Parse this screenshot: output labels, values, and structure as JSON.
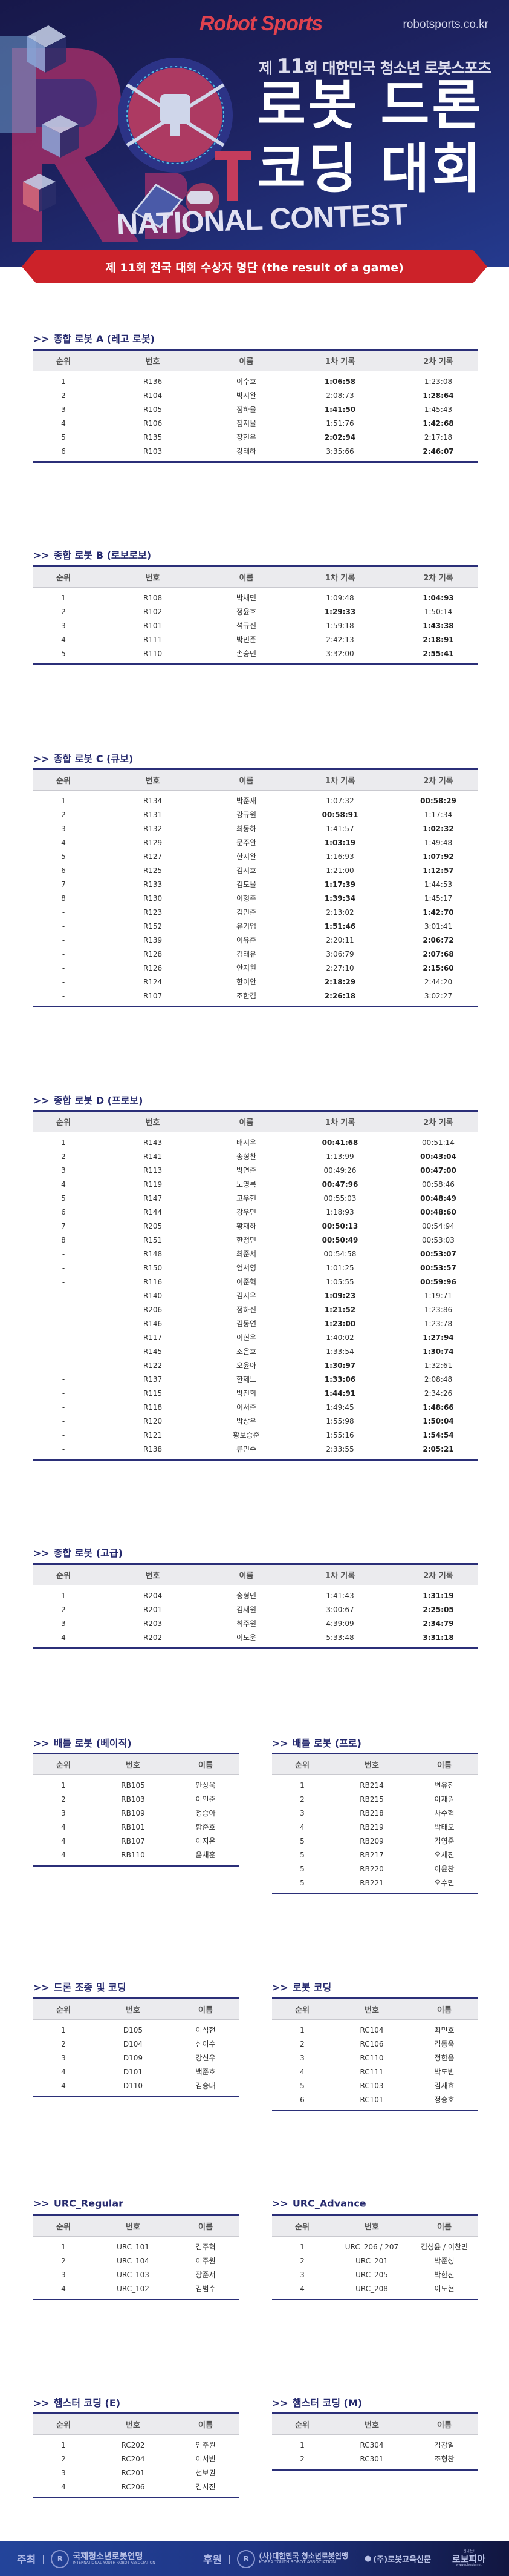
{
  "banner": {
    "logo": "Robot Sports",
    "url": "robotsports.co.kr",
    "subtitle_prefix": "제",
    "subtitle_number": "11",
    "subtitle_rest": "회 대한민국 청소년 로봇스포츠",
    "title_line1": "로봇 드론",
    "title_line2": "코딩 대회",
    "national": "NATIONAL CONTEST",
    "ribbon": "제 11회 전국 대회 수상자 명단 (the result of a game)"
  },
  "colors": {
    "navy": "#262a6e",
    "red": "#cc2229",
    "header_bg": "#ebebee"
  },
  "title_prefix": ">>",
  "headers_full": [
    "순위",
    "번호",
    "이름",
    "1차 기록",
    "2차 기록"
  ],
  "headers_small": [
    "순위",
    "번호",
    "이름"
  ],
  "sections": [
    {
      "title": "종합 로봇 A (레고 로봇)",
      "rows": [
        {
          "cells": [
            "1",
            "R136",
            "이수호",
            "1:06:58",
            "1:23:08"
          ],
          "best": 1
        },
        {
          "cells": [
            "2",
            "R104",
            "박시완",
            "2:08:73",
            "1:28:64"
          ],
          "best": 2
        },
        {
          "cells": [
            "3",
            "R105",
            "정하율",
            "1:41:50",
            "1:45:43"
          ],
          "best": 1
        },
        {
          "cells": [
            "4",
            "R106",
            "정지율",
            "1:51:76",
            "1:42:68"
          ],
          "best": 2
        },
        {
          "cells": [
            "5",
            "R135",
            "장현우",
            "2:02:94",
            "2:17:18"
          ],
          "best": 1
        },
        {
          "cells": [
            "6",
            "R103",
            "강태하",
            "3:35:66",
            "2:46:07"
          ],
          "best": 2
        }
      ]
    },
    {
      "title": "종합 로봇 B (로보로보)",
      "rows": [
        {
          "cells": [
            "1",
            "R108",
            "박채민",
            "1:09:48",
            "1:04:93"
          ],
          "best": 2
        },
        {
          "cells": [
            "2",
            "R102",
            "정윤호",
            "1:29:33",
            "1:50:14"
          ],
          "best": 1
        },
        {
          "cells": [
            "3",
            "R101",
            "석규진",
            "1:59:18",
            "1:43:38"
          ],
          "best": 2
        },
        {
          "cells": [
            "4",
            "R111",
            "박민준",
            "2:42:13",
            "2:18:91"
          ],
          "best": 2
        },
        {
          "cells": [
            "5",
            "R110",
            "손승민",
            "3:32:00",
            "2:55:41"
          ],
          "best": 2
        }
      ]
    },
    {
      "title": "종합 로봇 C (큐보)",
      "rows": [
        {
          "cells": [
            "1",
            "R134",
            "박준재",
            "1:07:32",
            "00:58:29"
          ],
          "best": 2
        },
        {
          "cells": [
            "2",
            "R131",
            "강규원",
            "00:58:91",
            "1:17:34"
          ],
          "best": 1
        },
        {
          "cells": [
            "3",
            "R132",
            "최동하",
            "1:41:57",
            "1:02:32"
          ],
          "best": 2
        },
        {
          "cells": [
            "4",
            "R129",
            "문주완",
            "1:03:19",
            "1:49:48"
          ],
          "best": 1
        },
        {
          "cells": [
            "5",
            "R127",
            "한지완",
            "1:16:93",
            "1:07:92"
          ],
          "best": 2
        },
        {
          "cells": [
            "6",
            "R125",
            "김시호",
            "1:21:00",
            "1:12:57"
          ],
          "best": 2
        },
        {
          "cells": [
            "7",
            "R133",
            "김도율",
            "1:17:39",
            "1:44:53"
          ],
          "best": 1
        },
        {
          "cells": [
            "8",
            "R130",
            "이형주",
            "1:39:34",
            "1:45:17"
          ],
          "best": 1
        },
        {
          "cells": [
            "-",
            "R123",
            "김민준",
            "2:13:02",
            "1:42:70"
          ],
          "best": 2
        },
        {
          "cells": [
            "-",
            "R152",
            "유기업",
            "1:51:46",
            "3:01:41"
          ],
          "best": 1
        },
        {
          "cells": [
            "-",
            "R139",
            "이유준",
            "2:20:11",
            "2:06:72"
          ],
          "best": 2
        },
        {
          "cells": [
            "-",
            "R128",
            "김태유",
            "3:06:79",
            "2:07:68"
          ],
          "best": 2
        },
        {
          "cells": [
            "-",
            "R126",
            "안지원",
            "2:27:10",
            "2:15:60"
          ],
          "best": 2
        },
        {
          "cells": [
            "-",
            "R124",
            "한이안",
            "2:18:29",
            "2:44:20"
          ],
          "best": 1
        },
        {
          "cells": [
            "-",
            "R107",
            "조한겸",
            "2:26:18",
            "3:02:27"
          ],
          "best": 1
        }
      ]
    },
    {
      "title": "종합 로봇 D (프로보)",
      "rows": [
        {
          "cells": [
            "1",
            "R143",
            "배시우",
            "00:41:68",
            "00:51:14"
          ],
          "best": 1
        },
        {
          "cells": [
            "2",
            "R141",
            "송형찬",
            "1:13:99",
            "00:43:04"
          ],
          "best": 2
        },
        {
          "cells": [
            "3",
            "R113",
            "박연준",
            "00:49:26",
            "00:47:00"
          ],
          "best": 2
        },
        {
          "cells": [
            "4",
            "R119",
            "노영록",
            "00:47:96",
            "00:58:46"
          ],
          "best": 1
        },
        {
          "cells": [
            "5",
            "R147",
            "고우현",
            "00:55:03",
            "00:48:49"
          ],
          "best": 2
        },
        {
          "cells": [
            "6",
            "R144",
            "강우민",
            "1:18:93",
            "00:48:60"
          ],
          "best": 2
        },
        {
          "cells": [
            "7",
            "R205",
            "황재하",
            "00:50:13",
            "00:54:94"
          ],
          "best": 1
        },
        {
          "cells": [
            "8",
            "R151",
            "한정민",
            "00:50:49",
            "00:53:03"
          ],
          "best": 1
        },
        {
          "cells": [
            "-",
            "R148",
            "최준서",
            "00:54:58",
            "00:53:07"
          ],
          "best": 2
        },
        {
          "cells": [
            "-",
            "R150",
            "엄서영",
            "1:01:25",
            "00:53:57"
          ],
          "best": 2
        },
        {
          "cells": [
            "-",
            "R116",
            "이준혁",
            "1:05:55",
            "00:59:96"
          ],
          "best": 2
        },
        {
          "cells": [
            "-",
            "R140",
            "김지우",
            "1:09:23",
            "1:19:71"
          ],
          "best": 1
        },
        {
          "cells": [
            "-",
            "R206",
            "정하진",
            "1:21:52",
            "1:23:86"
          ],
          "best": 1
        },
        {
          "cells": [
            "-",
            "R146",
            "김동연",
            "1:23:00",
            "1:23:78"
          ],
          "best": 1
        },
        {
          "cells": [
            "-",
            "R117",
            "이현우",
            "1:40:02",
            "1:27:94"
          ],
          "best": 2
        },
        {
          "cells": [
            "-",
            "R145",
            "조은호",
            "1:33:54",
            "1:30:74"
          ],
          "best": 2
        },
        {
          "cells": [
            "-",
            "R122",
            "오윤아",
            "1:30:97",
            "1:32:61"
          ],
          "best": 1
        },
        {
          "cells": [
            "-",
            "R137",
            "한제노",
            "1:33:06",
            "2:08:48"
          ],
          "best": 1
        },
        {
          "cells": [
            "-",
            "R115",
            "박진희",
            "1:44:91",
            "2:34:26"
          ],
          "best": 1
        },
        {
          "cells": [
            "-",
            "R118",
            "이서준",
            "1:49:45",
            "1:48:66"
          ],
          "best": 2
        },
        {
          "cells": [
            "-",
            "R120",
            "박상우",
            "1:55:98",
            "1:50:04"
          ],
          "best": 2
        },
        {
          "cells": [
            "-",
            "R121",
            "황보승준",
            "1:55:16",
            "1:54:54"
          ],
          "best": 2
        },
        {
          "cells": [
            "-",
            "R138",
            "류민수",
            "2:33:55",
            "2:05:21"
          ],
          "best": 2
        }
      ]
    },
    {
      "title": "종합 로봇 (고급)",
      "rows": [
        {
          "cells": [
            "1",
            "R204",
            "송형민",
            "1:41:43",
            "1:31:19"
          ],
          "best": 2
        },
        {
          "cells": [
            "2",
            "R201",
            "김재원",
            "3:00:67",
            "2:25:05"
          ],
          "best": 2
        },
        {
          "cells": [
            "3",
            "R203",
            "최주원",
            "4:39:09",
            "2:34:79"
          ],
          "best": 2
        },
        {
          "cells": [
            "4",
            "R202",
            "이도윤",
            "5:33:48",
            "3:31:18"
          ],
          "best": 2
        }
      ]
    },
    {
      "title": "배틀 로봇 (베이직)",
      "rows": [
        {
          "cells": [
            "1",
            "RB105",
            "안상욱"
          ]
        },
        {
          "cells": [
            "2",
            "RB103",
            "이인준"
          ]
        },
        {
          "cells": [
            "3",
            "RB109",
            "정승아"
          ]
        },
        {
          "cells": [
            "4",
            "RB101",
            "함준호"
          ]
        },
        {
          "cells": [
            "4",
            "RB107",
            "이지온"
          ]
        },
        {
          "cells": [
            "4",
            "RB110",
            "윤채훈"
          ]
        }
      ]
    },
    {
      "title": "배틀 로봇 (프로)",
      "rows": [
        {
          "cells": [
            "1",
            "RB214",
            "변유진"
          ]
        },
        {
          "cells": [
            "2",
            "RB215",
            "이재원"
          ]
        },
        {
          "cells": [
            "3",
            "RB218",
            "차수혁"
          ]
        },
        {
          "cells": [
            "4",
            "RB219",
            "박태오"
          ]
        },
        {
          "cells": [
            "5",
            "RB209",
            "김영준"
          ]
        },
        {
          "cells": [
            "5",
            "RB217",
            "오세진"
          ]
        },
        {
          "cells": [
            "5",
            "RB220",
            "이윤찬"
          ]
        },
        {
          "cells": [
            "5",
            "RB221",
            "오수민"
          ]
        }
      ]
    },
    {
      "title": "드론 조종 및 코딩",
      "rows": [
        {
          "cells": [
            "1",
            "D105",
            "이석현"
          ]
        },
        {
          "cells": [
            "2",
            "D104",
            "심이수"
          ]
        },
        {
          "cells": [
            "3",
            "D109",
            "강신우"
          ]
        },
        {
          "cells": [
            "4",
            "D101",
            "백준호"
          ]
        },
        {
          "cells": [
            "4",
            "D110",
            "김승태"
          ]
        }
      ]
    },
    {
      "title": "로봇 코딩",
      "rows": [
        {
          "cells": [
            "1",
            "RC104",
            "최민호"
          ]
        },
        {
          "cells": [
            "2",
            "RC106",
            "김동욱"
          ]
        },
        {
          "cells": [
            "3",
            "RC110",
            "정한음"
          ]
        },
        {
          "cells": [
            "4",
            "RC111",
            "박도빈"
          ]
        },
        {
          "cells": [
            "5",
            "RC103",
            "김재효"
          ]
        },
        {
          "cells": [
            "6",
            "RC101",
            "정승호"
          ]
        }
      ]
    },
    {
      "title": "URC_Regular",
      "rows": [
        {
          "cells": [
            "1",
            "URC_101",
            "김주혁"
          ]
        },
        {
          "cells": [
            "2",
            "URC_104",
            "이주원"
          ]
        },
        {
          "cells": [
            "3",
            "URC_103",
            "장준서"
          ]
        },
        {
          "cells": [
            "4",
            "URC_102",
            "김범수"
          ]
        }
      ]
    },
    {
      "title": "URC_Advance",
      "rows": [
        {
          "cells": [
            "1",
            "URC_206 / 207",
            "김성윤 / 이찬민"
          ]
        },
        {
          "cells": [
            "2",
            "URC_201",
            "박준성"
          ]
        },
        {
          "cells": [
            "3",
            "URC_205",
            "박한진"
          ]
        },
        {
          "cells": [
            "4",
            "URC_208",
            "이도현"
          ]
        }
      ]
    },
    {
      "title": "햄스터 코딩 (E)",
      "rows": [
        {
          "cells": [
            "1",
            "RC202",
            "임주원"
          ]
        },
        {
          "cells": [
            "2",
            "RC204",
            "이서빈"
          ]
        },
        {
          "cells": [
            "3",
            "RC201",
            "선보권"
          ]
        },
        {
          "cells": [
            "4",
            "RC206",
            "김시진"
          ]
        }
      ]
    },
    {
      "title": "햄스터 코딩 (M)",
      "rows": [
        {
          "cells": [
            "1",
            "RC304",
            "김강일"
          ]
        },
        {
          "cells": [
            "2",
            "RC301",
            "조형찬"
          ]
        }
      ]
    }
  ],
  "footer": {
    "host_label": "주최",
    "host_org": "국제청소년로봇연맹",
    "host_org_en": "INTERNATIONAL YOUTH ROBOT ASSOCIATION",
    "sponsor_label": "후원",
    "sponsor_org": "(사)대한민국 청소년로봇연맹",
    "sponsor_org_en": "KOREA YOUTH ROBOT ASSOCIATION",
    "newspaper": "(주)로봇교육신문",
    "robopia_tag": "신나는!",
    "robopia": "로보피아",
    "robopia_url": "www.robopia.net",
    "separator": "|"
  }
}
